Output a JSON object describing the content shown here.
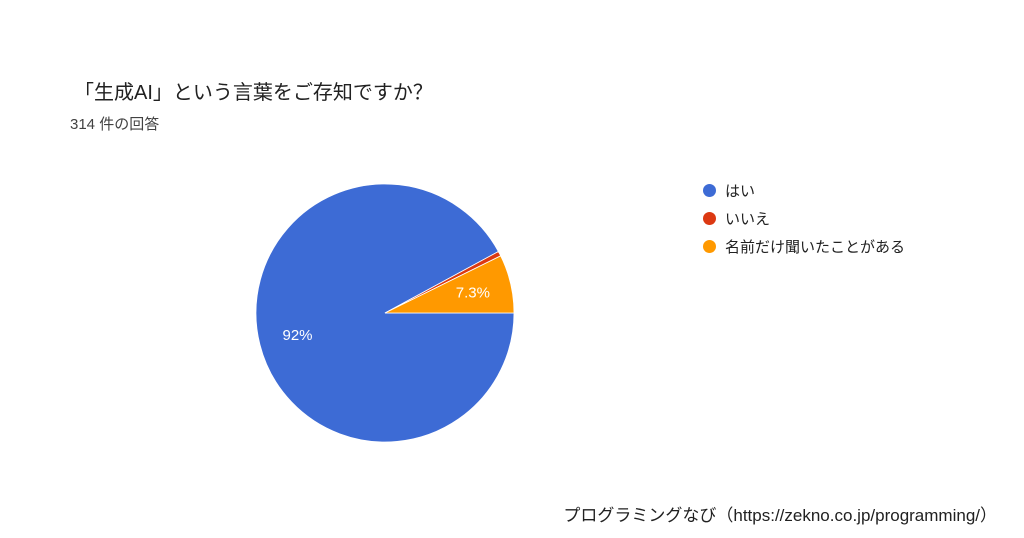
{
  "chart_data": {
    "type": "pie",
    "title": "「生成AI」という言葉をご存知ですか？",
    "subtitle": "314 件の回答",
    "total_responses": 314,
    "legend_position": "right",
    "background_color": "#ffffff",
    "slices": [
      {
        "label": "はい",
        "value": 92.0,
        "display": "92%",
        "color": "#3d6bd5"
      },
      {
        "label": "いいえ",
        "value": 0.6,
        "display": "",
        "color": "#dc3912"
      },
      {
        "label": "名前だけ聞いたことがある",
        "value": 7.3,
        "display": "7.3%",
        "color": "#ff9900"
      }
    ]
  },
  "footer": {
    "credit": "プログラミングなび（https://zekno.co.jp/programming/）"
  }
}
